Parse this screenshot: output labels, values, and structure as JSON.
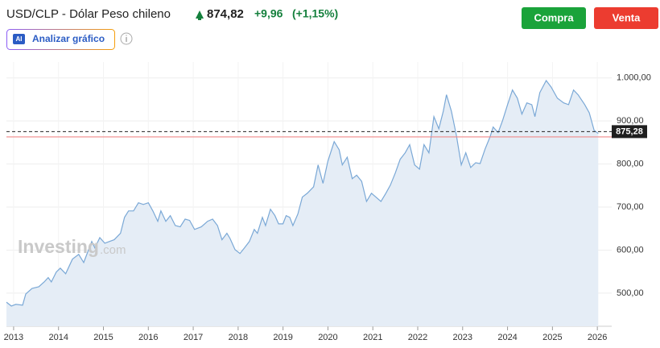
{
  "header": {
    "symbol_name": "USD/CLP - Dólar Peso chileno",
    "price": "874,82",
    "change": "+9,96",
    "change_pct": "(+1,15%)"
  },
  "buttons": {
    "buy": "Compra",
    "sell": "Venta"
  },
  "tools": {
    "ai_badge": "AI",
    "analyze": "Analizar gráfico"
  },
  "watermark": {
    "brand": "Investing",
    "suffix": ".com"
  },
  "chart_data": {
    "type": "area",
    "x": [
      2012.84,
      2012.95,
      2013.05,
      2013.2,
      2013.27,
      2013.41,
      2013.56,
      2013.68,
      2013.77,
      2013.84,
      2013.95,
      2014.04,
      2014.16,
      2014.31,
      2014.45,
      2014.56,
      2014.67,
      2014.74,
      2014.81,
      2014.92,
      2015.03,
      2015.13,
      2015.24,
      2015.38,
      2015.47,
      2015.56,
      2015.67,
      2015.78,
      2015.89,
      2016.0,
      2016.1,
      2016.21,
      2016.28,
      2016.39,
      2016.49,
      2016.6,
      2016.71,
      2016.82,
      2016.92,
      2017.03,
      2017.18,
      2017.32,
      2017.43,
      2017.54,
      2017.64,
      2017.75,
      2017.82,
      2017.93,
      2018.04,
      2018.14,
      2018.25,
      2018.36,
      2018.43,
      2018.54,
      2018.61,
      2018.72,
      2018.82,
      2018.9,
      2019.0,
      2019.07,
      2019.15,
      2019.22,
      2019.33,
      2019.43,
      2019.54,
      2019.68,
      2019.78,
      2019.89,
      2020.0,
      2020.14,
      2020.25,
      2020.32,
      2020.43,
      2020.54,
      2020.64,
      2020.75,
      2020.86,
      2020.97,
      2021.07,
      2021.18,
      2021.29,
      2021.39,
      2021.5,
      2021.61,
      2021.72,
      2021.82,
      2021.93,
      2022.04,
      2022.14,
      2022.25,
      2022.36,
      2022.47,
      2022.57,
      2022.64,
      2022.75,
      2022.86,
      2022.97,
      2023.07,
      2023.18,
      2023.29,
      2023.39,
      2023.5,
      2023.61,
      2023.68,
      2023.79,
      2023.89,
      2024.0,
      2024.11,
      2024.22,
      2024.32,
      2024.43,
      2024.54,
      2024.61,
      2024.72,
      2024.86,
      2024.97,
      2025.11,
      2025.25,
      2025.36,
      2025.47,
      2025.57,
      2025.72,
      2025.82,
      2025.93,
      2026.02
    ],
    "series": [
      {
        "color": "#7aa8d6",
        "fill": "#e5edf6",
        "values": [
          479,
          470,
          474,
          472,
          498,
          511,
          515,
          526,
          536,
          526,
          549,
          558,
          545,
          579,
          590,
          571,
          601,
          620,
          605,
          629,
          616,
          620,
          624,
          639,
          676,
          691,
          691,
          710,
          706,
          710,
          691,
          667,
          691,
          667,
          680,
          657,
          654,
          672,
          669,
          648,
          654,
          667,
          672,
          657,
          624,
          639,
          627,
          601,
          592,
          605,
          620,
          648,
          639,
          676,
          657,
          695,
          680,
          661,
          661,
          680,
          676,
          657,
          684,
          723,
          732,
          747,
          798,
          755,
          807,
          852,
          833,
          798,
          816,
          766,
          774,
          760,
          713,
          732,
          723,
          713,
          732,
          751,
          779,
          811,
          826,
          845,
          798,
          788,
          845,
          826,
          910,
          882,
          923,
          961,
          923,
          867,
          798,
          826,
          792,
          803,
          801,
          835,
          863,
          886,
          873,
          901,
          938,
          972,
          953,
          916,
          942,
          938,
          910,
          966,
          994,
          979,
          953,
          942,
          938,
          972,
          961,
          938,
          919,
          878,
          871
        ]
      }
    ],
    "xlim": [
      2012.84,
      2026.32
    ],
    "ylim": [
      423,
      1037
    ],
    "xticks": [
      2013,
      2014,
      2015,
      2016,
      2017,
      2018,
      2019,
      2020,
      2021,
      2022,
      2023,
      2024,
      2025,
      2026
    ],
    "yticks": [
      {
        "value": 500,
        "label": "500,00"
      },
      {
        "value": 600,
        "label": "600,00"
      },
      {
        "value": 700,
        "label": "700,00"
      },
      {
        "value": 800,
        "label": "800,00"
      },
      {
        "value": 900,
        "label": "900,00"
      },
      {
        "value": 1000,
        "label": "1.000,00"
      }
    ],
    "grid": true,
    "current_price": {
      "value": 875.28,
      "label": "875,28"
    },
    "reference_line": {
      "value": 863,
      "color": "#f08a8a"
    }
  }
}
